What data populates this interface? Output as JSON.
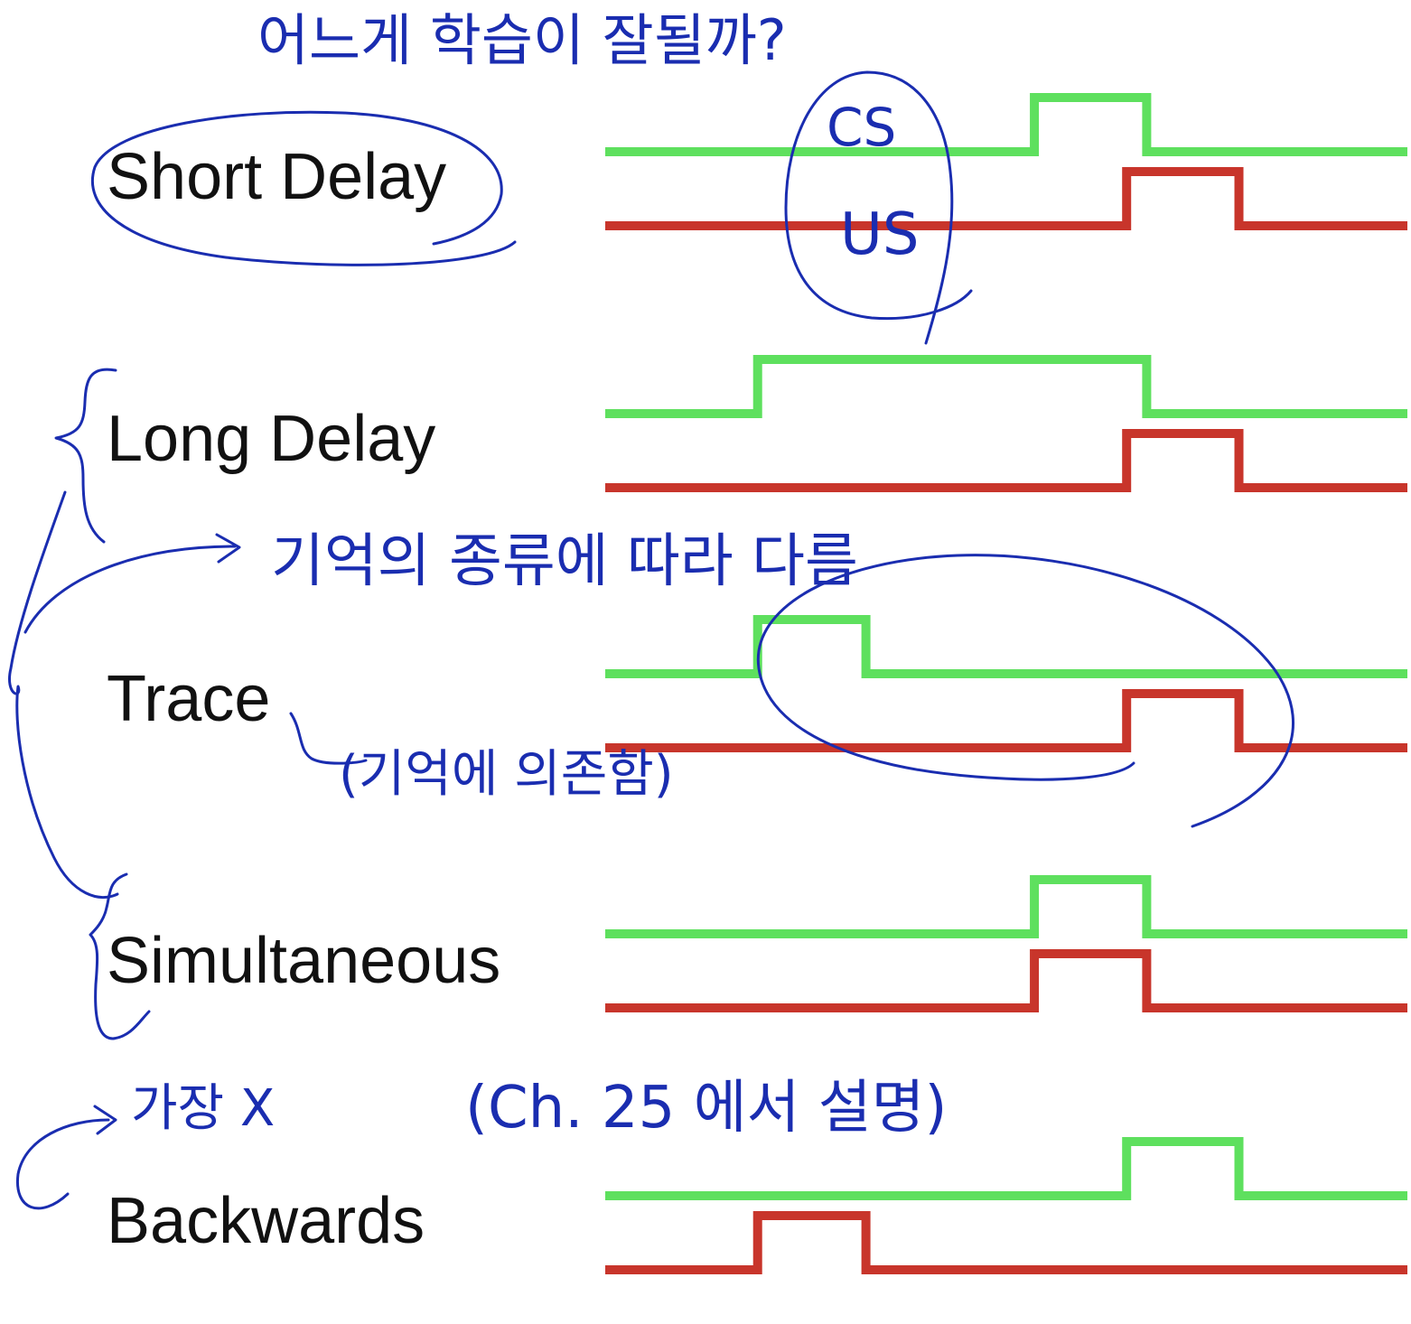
{
  "colors": {
    "cs_line": "#5ee05e",
    "us_line": "#c8352b",
    "ink": "#1a2db0",
    "label": "#111111"
  },
  "rows": [
    {
      "label": "Short Delay",
      "cs": [
        0.535,
        0.675
      ],
      "us": [
        0.65,
        0.79
      ]
    },
    {
      "label": "Long Delay",
      "cs": [
        0.19,
        0.675
      ],
      "us": [
        0.65,
        0.79
      ]
    },
    {
      "label": "Trace",
      "cs": [
        0.19,
        0.325
      ],
      "us": [
        0.65,
        0.79
      ]
    },
    {
      "label": "Simultaneous",
      "cs": [
        0.535,
        0.675
      ],
      "us": [
        0.535,
        0.675
      ]
    },
    {
      "label": "Backwards",
      "cs": [
        0.65,
        0.79
      ],
      "us": [
        0.19,
        0.325
      ]
    }
  ],
  "annotations": {
    "top_question": "어느게 학습이 잘될까?",
    "cs_mark": "CS",
    "us_mark": "US",
    "memory_note": "기억의 종류에 따라 다름",
    "trace_note": "(기억에 의존함)",
    "backwards_note": "가장 X",
    "chapter_note": "(Ch. 25 에서 설명)"
  }
}
